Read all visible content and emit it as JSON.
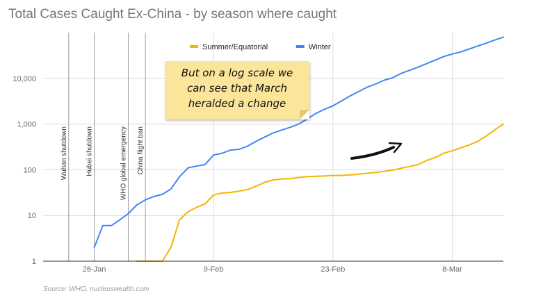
{
  "chart_data": {
    "type": "line",
    "title": "Total Cases Caught Ex-China - by season where caught",
    "x_dates": [
      "2020-01-20",
      "2020-01-21",
      "2020-01-22",
      "2020-01-23",
      "2020-01-24",
      "2020-01-25",
      "2020-01-26",
      "2020-01-27",
      "2020-01-28",
      "2020-01-29",
      "2020-01-30",
      "2020-01-31",
      "2020-02-01",
      "2020-02-02",
      "2020-02-03",
      "2020-02-04",
      "2020-02-05",
      "2020-02-06",
      "2020-02-07",
      "2020-02-08",
      "2020-02-09",
      "2020-02-10",
      "2020-02-11",
      "2020-02-12",
      "2020-02-13",
      "2020-02-14",
      "2020-02-15",
      "2020-02-16",
      "2020-02-17",
      "2020-02-18",
      "2020-02-19",
      "2020-02-20",
      "2020-02-21",
      "2020-02-22",
      "2020-02-23",
      "2020-02-24",
      "2020-02-25",
      "2020-02-26",
      "2020-02-27",
      "2020-02-28",
      "2020-02-29",
      "2020-03-01",
      "2020-03-02",
      "2020-03-03",
      "2020-03-04",
      "2020-03-05",
      "2020-03-06",
      "2020-03-07",
      "2020-03-08",
      "2020-03-09",
      "2020-03-10",
      "2020-03-11",
      "2020-03-12",
      "2020-03-13",
      "2020-03-14"
    ],
    "series": [
      {
        "name": "Summer/Equatorial",
        "color": "#f4b400",
        "values": [
          null,
          null,
          null,
          null,
          null,
          null,
          null,
          null,
          null,
          null,
          null,
          1,
          1,
          1,
          1,
          2,
          8,
          12,
          15,
          18,
          28,
          31,
          32,
          34,
          37,
          44,
          53,
          60,
          63,
          64,
          68,
          71,
          72,
          73,
          75,
          75,
          77,
          80,
          84,
          88,
          92,
          98,
          108,
          118,
          130,
          160,
          185,
          230,
          260,
          300,
          350,
          420,
          550,
          750,
          1000
        ]
      },
      {
        "name": "Winter",
        "color": "#4285f4",
        "values": [
          null,
          null,
          null,
          null,
          null,
          null,
          2,
          6,
          6,
          8,
          11,
          17,
          22,
          26,
          29,
          38,
          70,
          110,
          120,
          130,
          210,
          230,
          270,
          280,
          330,
          420,
          520,
          640,
          740,
          850,
          1000,
          1300,
          1700,
          2100,
          2500,
          3200,
          4100,
          5100,
          6400,
          7500,
          9100,
          10300,
          12800,
          15000,
          17600,
          21000,
          25000,
          30000,
          34000,
          38000,
          44000,
          51000,
          59000,
          69000,
          80000
        ]
      }
    ],
    "x_ticks": [
      "26-Jan",
      "9-Feb",
      "23-Feb",
      "8-Mar"
    ],
    "y_ticks": [
      "1",
      "10",
      "100",
      "1,000",
      "10,000"
    ],
    "y_scale": "log",
    "ylim": [
      1,
      100000
    ],
    "xlabel": "",
    "ylabel": "",
    "legend_position": "top-center",
    "grid": true,
    "event_markers": [
      {
        "date": "2020-01-23",
        "label": "Wuhan shutdown"
      },
      {
        "date": "2020-01-26",
        "label": "Hubei shutdown"
      },
      {
        "date": "2020-01-30",
        "label": "WHO global emergency"
      },
      {
        "date": "2020-02-01",
        "label": "China flight ban"
      }
    ]
  },
  "annotation": {
    "lines": [
      "But on a log scale we",
      "can see that March",
      "heralded a change"
    ]
  },
  "source": "Source: WHO, nucleuswealth.com"
}
